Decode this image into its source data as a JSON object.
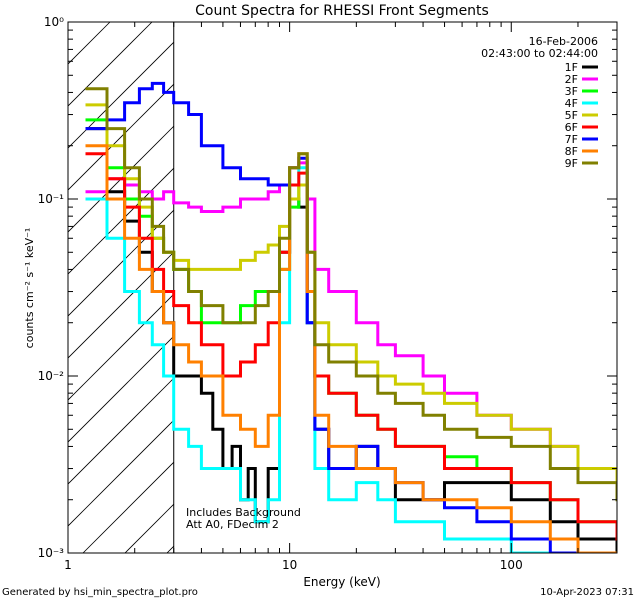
{
  "chart_data": {
    "type": "line",
    "title": "Count Spectra for RHESSI Front Segments",
    "xlabel": "Energy (keV)",
    "ylabel": "counts cm⁻² s⁻¹ keV⁻¹",
    "xscale": "log",
    "yscale": "log",
    "xlim": [
      1,
      300
    ],
    "ylim": [
      0.001,
      1
    ],
    "x_ticks": [
      {
        "value": 1,
        "label": "1"
      },
      {
        "value": 10,
        "label": "10"
      },
      {
        "value": 100,
        "label": "100"
      }
    ],
    "y_ticks": [
      {
        "value": 0.001,
        "label": "10⁻³"
      },
      {
        "value": 0.01,
        "label": "10⁻²"
      },
      {
        "value": 0.1,
        "label": "10⁻¹"
      },
      {
        "value": 1,
        "label": "10⁰"
      }
    ],
    "hatched_region": {
      "x_from": 1,
      "x_to": 3
    },
    "date_text": "16-Feb-2006",
    "time_range_text": "02:43:00 to 02:44:00",
    "legend_position": "top-right",
    "annotations": [
      "Includes Background",
      "Att A0, FDecim 2"
    ],
    "footer_left": "Generated by hsi_min_spectra_plot.pro",
    "footer_right": "10-Apr-2023 07:31",
    "series": [
      {
        "name": "1F",
        "color": "#000000",
        "points": [
          [
            1.2,
            0.25
          ],
          [
            1.5,
            0.11
          ],
          [
            1.8,
            0.075
          ],
          [
            2.1,
            0.05
          ],
          [
            2.4,
            0.03
          ],
          [
            2.7,
            0.02
          ],
          [
            3,
            0.01
          ],
          [
            3.5,
            0.01
          ],
          [
            4,
            0.008
          ],
          [
            4.5,
            0.005
          ],
          [
            5,
            0.003
          ],
          [
            5.5,
            0.004
          ],
          [
            6,
            0.002
          ],
          [
            6.5,
            0.003
          ],
          [
            7,
            0.0015
          ],
          [
            8,
            0.003
          ],
          [
            9,
            0.05
          ],
          [
            10,
            0.1
          ],
          [
            11,
            0.09
          ],
          [
            12,
            0.02
          ],
          [
            13,
            0.005
          ],
          [
            15,
            0.003
          ],
          [
            20,
            0.004
          ],
          [
            25,
            0.003
          ],
          [
            30,
            0.002
          ],
          [
            40,
            0.002
          ],
          [
            50,
            0.0025
          ],
          [
            70,
            0.0025
          ],
          [
            100,
            0.002
          ],
          [
            150,
            0.0015
          ],
          [
            200,
            0.0012
          ],
          [
            300,
            0.001
          ]
        ]
      },
      {
        "name": "2F",
        "color": "#ff00ff",
        "points": [
          [
            1.2,
            0.11
          ],
          [
            1.5,
            0.13
          ],
          [
            1.8,
            0.12
          ],
          [
            2.1,
            0.11
          ],
          [
            2.4,
            0.1
          ],
          [
            2.7,
            0.11
          ],
          [
            3,
            0.095
          ],
          [
            3.5,
            0.09
          ],
          [
            4,
            0.085
          ],
          [
            5,
            0.09
          ],
          [
            6,
            0.1
          ],
          [
            7,
            0.1
          ],
          [
            8,
            0.11
          ],
          [
            9,
            0.12
          ],
          [
            10,
            0.15
          ],
          [
            11,
            0.16
          ],
          [
            12,
            0.1
          ],
          [
            13,
            0.04
          ],
          [
            15,
            0.03
          ],
          [
            20,
            0.02
          ],
          [
            25,
            0.015
          ],
          [
            30,
            0.013
          ],
          [
            40,
            0.01
          ],
          [
            50,
            0.008
          ],
          [
            70,
            0.006
          ],
          [
            100,
            0.005
          ],
          [
            150,
            0.004
          ],
          [
            200,
            0.003
          ],
          [
            300,
            0.0025
          ]
        ]
      },
      {
        "name": "3F",
        "color": "#00ff00",
        "points": [
          [
            1.2,
            0.28
          ],
          [
            1.5,
            0.15
          ],
          [
            1.8,
            0.1
          ],
          [
            2.1,
            0.08
          ],
          [
            2.4,
            0.06
          ],
          [
            2.7,
            0.05
          ],
          [
            3,
            0.04
          ],
          [
            3.5,
            0.03
          ],
          [
            4,
            0.02
          ],
          [
            5,
            0.02
          ],
          [
            6,
            0.025
          ],
          [
            7,
            0.03
          ],
          [
            8,
            0.03
          ],
          [
            9,
            0.04
          ],
          [
            10,
            0.09
          ],
          [
            11,
            0.12
          ],
          [
            12,
            0.03
          ],
          [
            13,
            0.01
          ],
          [
            15,
            0.008
          ],
          [
            20,
            0.006
          ],
          [
            25,
            0.005
          ],
          [
            30,
            0.004
          ],
          [
            40,
            0.004
          ],
          [
            50,
            0.0035
          ],
          [
            70,
            0.003
          ],
          [
            100,
            0.0025
          ],
          [
            150,
            0.002
          ],
          [
            200,
            0.0015
          ],
          [
            300,
            0.0012
          ]
        ]
      },
      {
        "name": "4F",
        "color": "#00ffff",
        "points": [
          [
            1.2,
            0.1
          ],
          [
            1.5,
            0.06
          ],
          [
            1.8,
            0.03
          ],
          [
            2.1,
            0.02
          ],
          [
            2.4,
            0.015
          ],
          [
            2.7,
            0.01
          ],
          [
            3,
            0.005
          ],
          [
            3.5,
            0.004
          ],
          [
            4,
            0.003
          ],
          [
            5,
            0.003
          ],
          [
            6,
            0.002
          ],
          [
            7,
            0.0015
          ],
          [
            8,
            0.002
          ],
          [
            9,
            0.02
          ],
          [
            10,
            0.12
          ],
          [
            11,
            0.15
          ],
          [
            12,
            0.02
          ],
          [
            13,
            0.003
          ],
          [
            15,
            0.002
          ],
          [
            20,
            0.0025
          ],
          [
            25,
            0.002
          ],
          [
            30,
            0.0015
          ],
          [
            40,
            0.0015
          ],
          [
            50,
            0.0012
          ],
          [
            70,
            0.0012
          ],
          [
            100,
            0.001
          ],
          [
            150,
            0.001
          ],
          [
            200,
            0.001
          ],
          [
            300,
            0.001
          ]
        ]
      },
      {
        "name": "5F",
        "color": "#cccc00",
        "points": [
          [
            1.2,
            0.34
          ],
          [
            1.5,
            0.2
          ],
          [
            1.8,
            0.13
          ],
          [
            2.1,
            0.09
          ],
          [
            2.4,
            0.06
          ],
          [
            2.7,
            0.05
          ],
          [
            3,
            0.045
          ],
          [
            3.5,
            0.04
          ],
          [
            4,
            0.04
          ],
          [
            5,
            0.04
          ],
          [
            6,
            0.045
          ],
          [
            7,
            0.05
          ],
          [
            8,
            0.055
          ],
          [
            9,
            0.07
          ],
          [
            10,
            0.1
          ],
          [
            11,
            0.12
          ],
          [
            12,
            0.05
          ],
          [
            13,
            0.02
          ],
          [
            15,
            0.015
          ],
          [
            20,
            0.012
          ],
          [
            25,
            0.01
          ],
          [
            30,
            0.009
          ],
          [
            40,
            0.008
          ],
          [
            50,
            0.007
          ],
          [
            70,
            0.006
          ],
          [
            100,
            0.005
          ],
          [
            150,
            0.004
          ],
          [
            200,
            0.003
          ],
          [
            300,
            0.0025
          ]
        ]
      },
      {
        "name": "6F",
        "color": "#ff0000",
        "points": [
          [
            1.2,
            0.18
          ],
          [
            1.5,
            0.13
          ],
          [
            1.8,
            0.09
          ],
          [
            2.1,
            0.06
          ],
          [
            2.4,
            0.04
          ],
          [
            2.7,
            0.03
          ],
          [
            3,
            0.025
          ],
          [
            3.5,
            0.02
          ],
          [
            4,
            0.015
          ],
          [
            5,
            0.01
          ],
          [
            6,
            0.012
          ],
          [
            7,
            0.015
          ],
          [
            8,
            0.02
          ],
          [
            9,
            0.05
          ],
          [
            10,
            0.12
          ],
          [
            11,
            0.14
          ],
          [
            12,
            0.03
          ],
          [
            13,
            0.01
          ],
          [
            15,
            0.008
          ],
          [
            20,
            0.006
          ],
          [
            25,
            0.005
          ],
          [
            30,
            0.004
          ],
          [
            40,
            0.004
          ],
          [
            50,
            0.003
          ],
          [
            70,
            0.003
          ],
          [
            100,
            0.0025
          ],
          [
            150,
            0.002
          ],
          [
            200,
            0.0015
          ],
          [
            300,
            0.0012
          ]
        ]
      },
      {
        "name": "7F",
        "color": "#0000ff",
        "points": [
          [
            1.2,
            0.25
          ],
          [
            1.5,
            0.28
          ],
          [
            1.8,
            0.35
          ],
          [
            2.1,
            0.42
          ],
          [
            2.4,
            0.45
          ],
          [
            2.7,
            0.4
          ],
          [
            3,
            0.35
          ],
          [
            3.5,
            0.3
          ],
          [
            4,
            0.2
          ],
          [
            5,
            0.15
          ],
          [
            6,
            0.13
          ],
          [
            7,
            0.13
          ],
          [
            8,
            0.12
          ],
          [
            9,
            0.12
          ],
          [
            10,
            0.15
          ],
          [
            11,
            0.17
          ],
          [
            12,
            0.02
          ],
          [
            13,
            0.005
          ],
          [
            15,
            0.003
          ],
          [
            20,
            0.004
          ],
          [
            25,
            0.003
          ],
          [
            30,
            0.0025
          ],
          [
            40,
            0.002
          ],
          [
            50,
            0.0018
          ],
          [
            70,
            0.0015
          ],
          [
            100,
            0.0012
          ],
          [
            150,
            0.001
          ],
          [
            200,
            0.001
          ],
          [
            300,
            0.001
          ]
        ]
      },
      {
        "name": "8F",
        "color": "#ff8000",
        "points": [
          [
            1.2,
            0.2
          ],
          [
            1.5,
            0.1
          ],
          [
            1.8,
            0.06
          ],
          [
            2.1,
            0.04
          ],
          [
            2.4,
            0.03
          ],
          [
            2.7,
            0.02
          ],
          [
            3,
            0.015
          ],
          [
            3.5,
            0.012
          ],
          [
            4,
            0.01
          ],
          [
            5,
            0.006
          ],
          [
            6,
            0.005
          ],
          [
            7,
            0.004
          ],
          [
            8,
            0.006
          ],
          [
            9,
            0.04
          ],
          [
            10,
            0.15
          ],
          [
            11,
            0.18
          ],
          [
            12,
            0.03
          ],
          [
            13,
            0.006
          ],
          [
            15,
            0.004
          ],
          [
            20,
            0.003
          ],
          [
            25,
            0.003
          ],
          [
            30,
            0.0025
          ],
          [
            40,
            0.002
          ],
          [
            50,
            0.002
          ],
          [
            70,
            0.0018
          ],
          [
            100,
            0.0015
          ],
          [
            150,
            0.0012
          ],
          [
            200,
            0.001
          ],
          [
            300,
            0.001
          ]
        ]
      },
      {
        "name": "9F",
        "color": "#808000",
        "points": [
          [
            1.2,
            0.42
          ],
          [
            1.5,
            0.25
          ],
          [
            1.8,
            0.15
          ],
          [
            2.1,
            0.1
          ],
          [
            2.4,
            0.07
          ],
          [
            2.7,
            0.05
          ],
          [
            3,
            0.04
          ],
          [
            3.5,
            0.03
          ],
          [
            4,
            0.025
          ],
          [
            5,
            0.02
          ],
          [
            6,
            0.02
          ],
          [
            7,
            0.025
          ],
          [
            8,
            0.03
          ],
          [
            9,
            0.06
          ],
          [
            10,
            0.15
          ],
          [
            11,
            0.18
          ],
          [
            12,
            0.05
          ],
          [
            13,
            0.015
          ],
          [
            15,
            0.012
          ],
          [
            20,
            0.01
          ],
          [
            25,
            0.008
          ],
          [
            30,
            0.007
          ],
          [
            40,
            0.006
          ],
          [
            50,
            0.005
          ],
          [
            70,
            0.0045
          ],
          [
            100,
            0.004
          ],
          [
            150,
            0.003
          ],
          [
            200,
            0.0025
          ],
          [
            300,
            0.002
          ]
        ]
      }
    ]
  }
}
